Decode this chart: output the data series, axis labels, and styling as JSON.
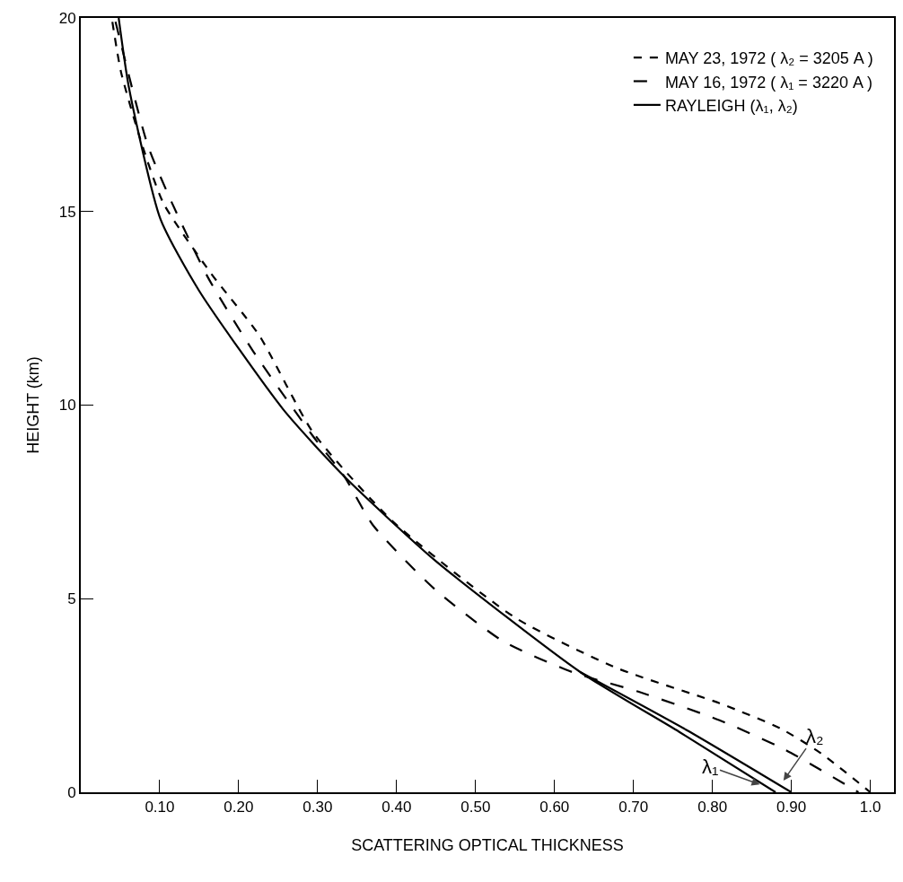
{
  "chart_data": {
    "type": "line",
    "xlabel": "SCATTERING OPTICAL THICKNESS",
    "ylabel": "HEIGHT (km)",
    "xlim": [
      0,
      1.03
    ],
    "ylim": [
      0,
      20
    ],
    "xticks": [
      {
        "value": 0.1,
        "label": "0.10"
      },
      {
        "value": 0.2,
        "label": "0.20"
      },
      {
        "value": 0.3,
        "label": "0.30"
      },
      {
        "value": 0.4,
        "label": "0.40"
      },
      {
        "value": 0.5,
        "label": "0.50"
      },
      {
        "value": 0.6,
        "label": "0.60"
      },
      {
        "value": 0.7,
        "label": "0.70"
      },
      {
        "value": 0.8,
        "label": "0.80"
      },
      {
        "value": 0.9,
        "label": "0.90"
      },
      {
        "value": 1.0,
        "label": "1.0"
      }
    ],
    "yticks": [
      0,
      5,
      10,
      15,
      20
    ],
    "grid": false,
    "legend": "top right",
    "marker": "none",
    "series": [
      {
        "name": "MAY 23, 1972 ( λ₂ = 3205 A )",
        "color": "#000000",
        "line_style": "dashed",
        "x": [
          0.04,
          0.051,
          0.078,
          0.105,
          0.165,
          0.226,
          0.294,
          0.395,
          0.551,
          0.68,
          0.809,
          0.886,
          0.938,
          1.0
        ],
        "values": [
          19.9,
          18.6,
          16.7,
          15.2,
          13.4,
          11.8,
          9.3,
          7.0,
          4.5,
          3.2,
          2.3,
          1.65,
          1.0,
          0
        ]
      },
      {
        "name": "MAY 16, 1972 ( λ₁ = 3220 A )",
        "color": "#000000",
        "line_style": "dashed",
        "x": [
          0.044,
          0.085,
          0.116,
          0.161,
          0.218,
          0.294,
          0.334,
          0.37,
          0.448,
          0.535,
          0.623,
          0.706,
          0.809,
          0.892,
          0.985
        ],
        "values": [
          19.9,
          16.7,
          15.2,
          13.3,
          11.4,
          9.2,
          8.15,
          6.9,
          5.25,
          3.9,
          3.1,
          2.6,
          1.86,
          1.1,
          0
        ]
      },
      {
        "name": "RAYLEIGH (λ₁, λ₂)",
        "color": "#000000",
        "line_style": "solid",
        "x": [
          0.048,
          0.061,
          0.101,
          0.15,
          0.256,
          0.334,
          0.448,
          0.633,
          0.758,
          0.88
        ],
        "values": [
          20,
          18.2,
          14.8,
          12.95,
          9.9,
          8.15,
          6.0,
          3.1,
          1.56,
          0
        ]
      },
      {
        "color": "#000000",
        "line_style": "solid",
        "x": [
          0.633,
          0.768,
          0.9
        ],
        "values": [
          3.1,
          1.6,
          0
        ]
      }
    ],
    "annotations": [
      {
        "text": "λ₁",
        "x": 0.86,
        "y": 0.2
      },
      {
        "text": "λ₂",
        "x": 0.89,
        "y": 0.3
      }
    ]
  }
}
